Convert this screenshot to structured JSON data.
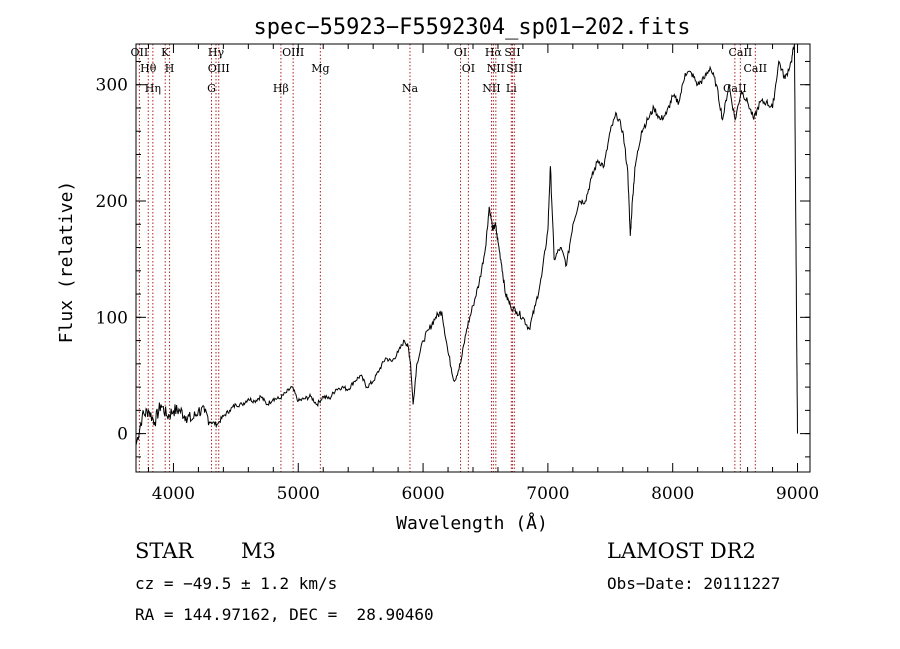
{
  "chart_data": {
    "type": "line",
    "title": "spec−55923−F5592304_sp01−202.fits",
    "xlabel": "Wavelength (Å)",
    "ylabel": "Flux (relative)",
    "xlim": [
      3700,
      9100
    ],
    "ylim": [
      -33,
      335
    ],
    "xticks": [
      4000,
      5000,
      6000,
      7000,
      8000,
      9000
    ],
    "yticks": [
      0,
      100,
      200,
      300
    ],
    "grid": false,
    "legend": "none",
    "line_color": "#000000",
    "marker_color": "#b22222",
    "series": [
      {
        "x": [
          3700,
          3750,
          3800,
          3850,
          3900,
          3950,
          4000,
          4050,
          4100,
          4150,
          4200,
          4250,
          4300,
          4350,
          4400,
          4450,
          4500,
          4550,
          4600,
          4650,
          4700,
          4750,
          4800,
          4850,
          4900,
          4950,
          5000,
          5050,
          5100,
          5150,
          5200,
          5250,
          5300,
          5350,
          5400,
          5450,
          5500,
          5550,
          5600,
          5650,
          5700,
          5750,
          5800,
          5850,
          5880,
          5900,
          5920,
          5950,
          6000,
          6050,
          6100,
          6150,
          6200,
          6250,
          6300,
          6350,
          6400,
          6450,
          6500,
          6530,
          6560,
          6580,
          6600,
          6630,
          6660,
          6700,
          6750,
          6800,
          6850,
          6900,
          6950,
          7000,
          7020,
          7050,
          7100,
          7150,
          7200,
          7250,
          7300,
          7350,
          7400,
          7450,
          7500,
          7550,
          7600,
          7640,
          7660,
          7680,
          7700,
          7750,
          7800,
          7850,
          7900,
          7950,
          8000,
          8050,
          8100,
          8150,
          8200,
          8250,
          8300,
          8350,
          8400,
          8450,
          8500,
          8550,
          8600,
          8650,
          8700,
          8750,
          8800,
          8850,
          8900,
          8950,
          8975,
          8985,
          8995,
          9000
        ],
        "y": [
          -10,
          15,
          20,
          10,
          25,
          15,
          20,
          20,
          15,
          12,
          20,
          18,
          10,
          8,
          15,
          20,
          25,
          25,
          30,
          28,
          32,
          25,
          30,
          30,
          35,
          40,
          28,
          30,
          32,
          25,
          32,
          30,
          38,
          40,
          38,
          45,
          50,
          40,
          45,
          55,
          65,
          62,
          70,
          80,
          75,
          60,
          25,
          60,
          80,
          90,
          100,
          105,
          70,
          45,
          60,
          90,
          110,
          130,
          160,
          195,
          175,
          180,
          165,
          145,
          120,
          110,
          105,
          100,
          90,
          110,
          135,
          175,
          230,
          150,
          160,
          145,
          180,
          200,
          200,
          220,
          235,
          230,
          260,
          275,
          260,
          225,
          170,
          205,
          230,
          260,
          270,
          280,
          270,
          275,
          290,
          285,
          310,
          310,
          300,
          305,
          315,
          300,
          270,
          300,
          270,
          295,
          285,
          270,
          285,
          285,
          280,
          320,
          305,
          320,
          335,
          200,
          60,
          0
        ]
      }
    ],
    "lines": [
      {
        "name": "OII",
        "x": 3727
      },
      {
        "name": "Hθ",
        "x": 3798
      },
      {
        "name": "Hη",
        "x": 3835
      },
      {
        "name": "K",
        "x": 3934
      },
      {
        "name": "H",
        "x": 3969
      },
      {
        "name": "G",
        "x": 4305
      },
      {
        "name": "Hγ",
        "x": 4341
      },
      {
        "name": "OIII",
        "x": 4363
      },
      {
        "name": "Hβ",
        "x": 4861
      },
      {
        "name": "OIII",
        "x": 4959
      },
      {
        "name": "Mg",
        "x": 5177
      },
      {
        "name": "Na",
        "x": 5895
      },
      {
        "name": "OI",
        "x": 6300
      },
      {
        "name": "OI",
        "x": 6363
      },
      {
        "name": "NII",
        "x": 6548
      },
      {
        "name": "Hα",
        "x": 6563
      },
      {
        "name": "NII",
        "x": 6583
      },
      {
        "name": "Li",
        "x": 6707
      },
      {
        "name": "SII",
        "x": 6716
      },
      {
        "name": "SII",
        "x": 6731
      },
      {
        "name": "CaII",
        "x": 8498
      },
      {
        "name": "CaII",
        "x": 8542
      },
      {
        "name": "CaII",
        "x": 8662
      }
    ]
  },
  "info": {
    "object_class": "STAR",
    "subclass": "M3",
    "survey": "LAMOST DR2",
    "cz": "cz = −49.5 ± 1.2 km/s",
    "obs_date": "Obs−Date: 20111227",
    "coords": "RA = 144.97162, DEC =  28.90460"
  }
}
